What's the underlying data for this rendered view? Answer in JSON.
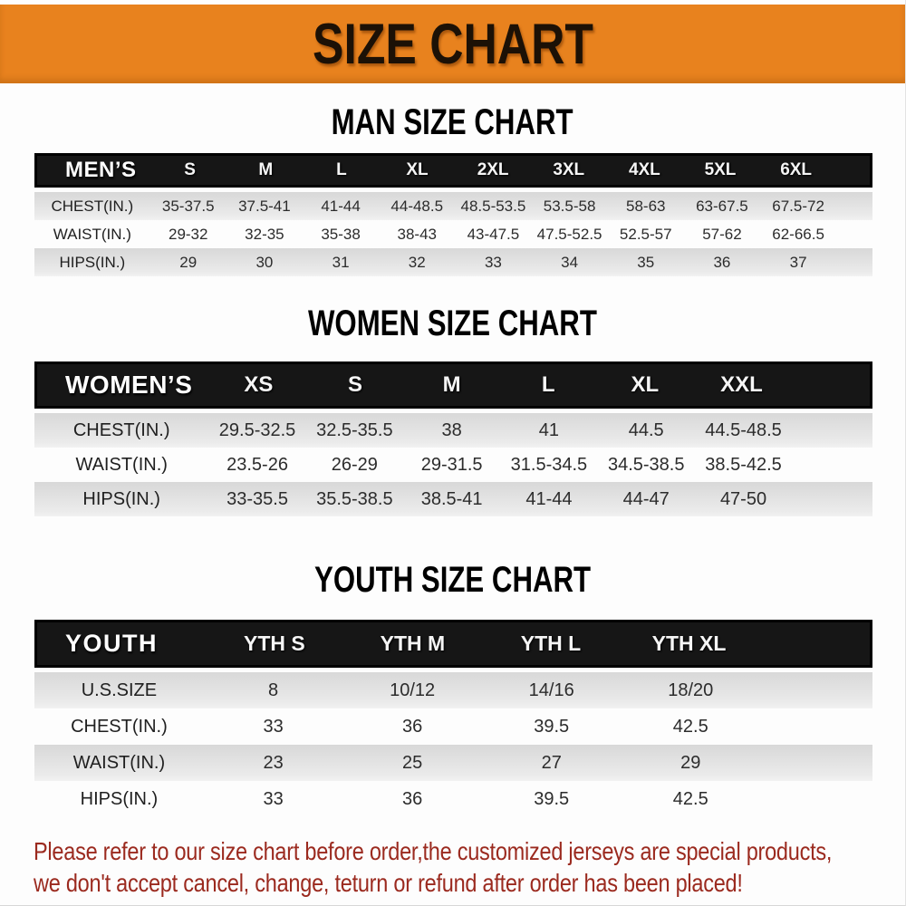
{
  "banner": {
    "title": "SIZE CHART"
  },
  "colors": {
    "banner_bg": "#e8821e",
    "banner_text": "#1c1106",
    "header_bar_bg": "#161616",
    "header_text": "#ffffff",
    "row_gray": "#e3e3e3",
    "body_text": "#2c2c2c",
    "footer_red": "#9b2a1f"
  },
  "sections": [
    {
      "heading": "MAN SIZE CHART",
      "table": {
        "id": "men",
        "corner_label": "MEN’S",
        "columns": [
          "S",
          "M",
          "L",
          "XL",
          "2XL",
          "3XL",
          "4XL",
          "5XL",
          "6XL"
        ],
        "rows": [
          {
            "label": "CHEST(IN.)",
            "values": [
              "35-37.5",
              "37.5-41",
              "41-44",
              "44-48.5",
              "48.5-53.5",
              "53.5-58",
              "58-63",
              "63-67.5",
              "67.5-72"
            ]
          },
          {
            "label": "WAIST(IN.)",
            "values": [
              "29-32",
              "32-35",
              "35-38",
              "38-43",
              "43-47.5",
              "47.5-52.5",
              "52.5-57",
              "57-62",
              "62-66.5"
            ]
          },
          {
            "label": "HIPS(IN.)",
            "values": [
              "29",
              "30",
              "31",
              "32",
              "33",
              "34",
              "35",
              "36",
              "37"
            ]
          }
        ]
      }
    },
    {
      "heading": "WOMEN SIZE CHART",
      "table": {
        "id": "women",
        "corner_label": "WOMEN’S",
        "columns": [
          "XS",
          "S",
          "M",
          "L",
          "XL",
          "XXL"
        ],
        "rows": [
          {
            "label": "CHEST(IN.)",
            "values": [
              "29.5-32.5",
              "32.5-35.5",
              "38",
              "41",
              "44.5",
              "44.5-48.5"
            ]
          },
          {
            "label": "WAIST(IN.)",
            "values": [
              "23.5-26",
              "26-29",
              "29-31.5",
              "31.5-34.5",
              "34.5-38.5",
              "38.5-42.5"
            ]
          },
          {
            "label": "HIPS(IN.)",
            "values": [
              "33-35.5",
              "35.5-38.5",
              "38.5-41",
              "41-44",
              "44-47",
              "47-50"
            ]
          }
        ]
      }
    },
    {
      "heading": "YOUTH SIZE CHART",
      "table": {
        "id": "youth",
        "corner_label": "YOUTH",
        "columns": [
          "YTH S",
          "YTH M",
          "YTH L",
          "YTH XL"
        ],
        "rows": [
          {
            "label": "U.S.SIZE",
            "values": [
              "8",
              "10/12",
              "14/16",
              "18/20"
            ]
          },
          {
            "label": "CHEST(IN.)",
            "values": [
              "33",
              "36",
              "39.5",
              "42.5"
            ]
          },
          {
            "label": "WAIST(IN.)",
            "values": [
              "23",
              "25",
              "27",
              "29"
            ]
          },
          {
            "label": "HIPS(IN.)",
            "values": [
              "33",
              "36",
              "39.5",
              "42.5"
            ]
          }
        ]
      }
    }
  ],
  "footer": {
    "lines": [
      "Please refer to our size chart before order,the customized jerseys are special products,",
      "we don't accept cancel, change, teturn or refund after order has been placed!"
    ]
  }
}
